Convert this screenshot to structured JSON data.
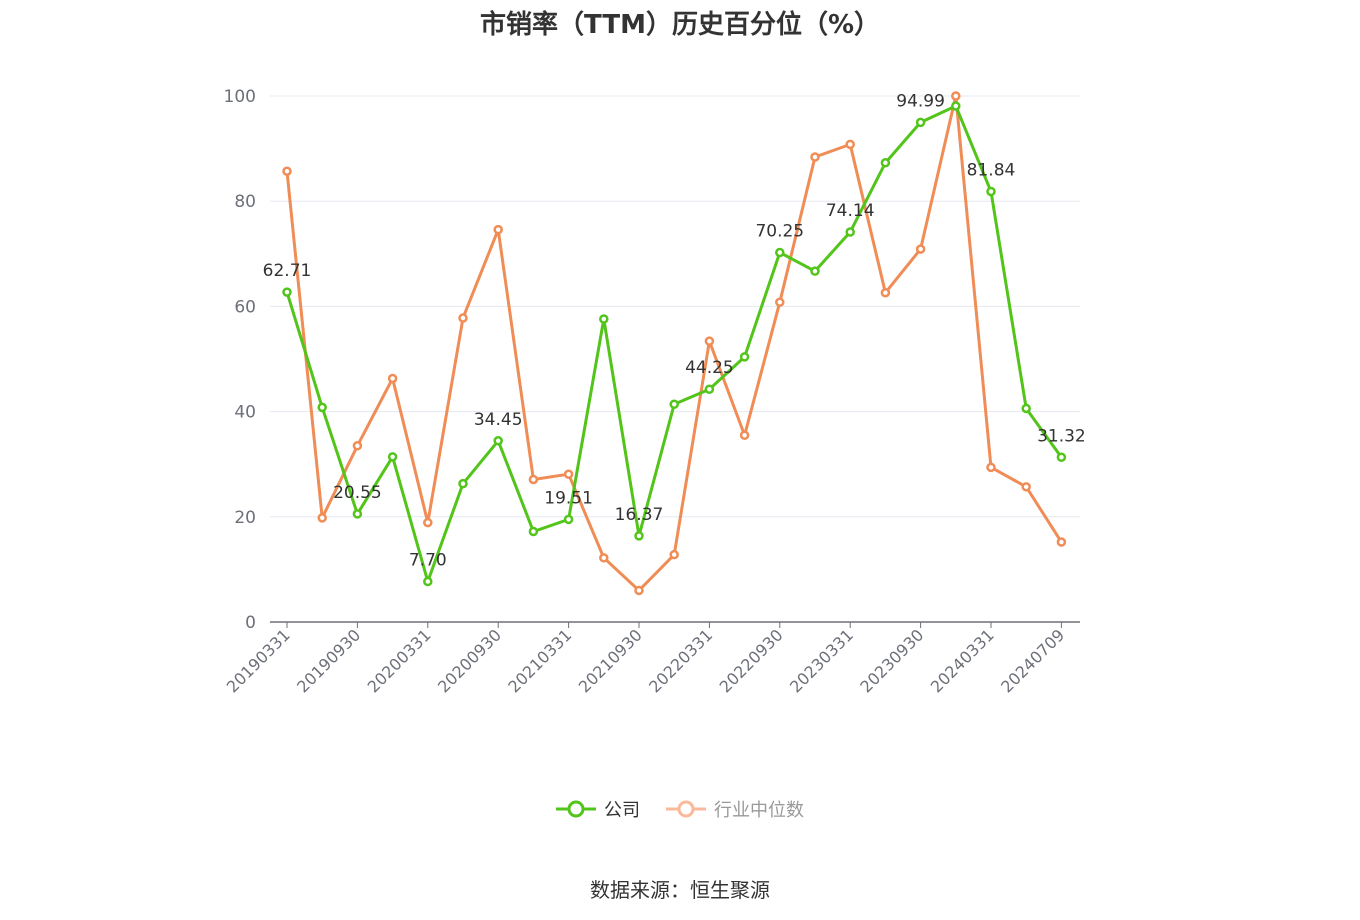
{
  "title": "市销率（TTM）历史百分位（%）",
  "source": "数据来源：恒生聚源",
  "colors": {
    "company": "#52c41a",
    "industry": "#f08c55",
    "grid": "#e6e8f0",
    "axis": "#6e7079",
    "label": "#333333"
  },
  "legend": [
    {
      "name": "公司",
      "color": "#52c41a",
      "icon": "circle-line-icon"
    },
    {
      "name": "行业中位数",
      "color": "#f9b99a",
      "icon": "circle-line-icon"
    }
  ],
  "chart_data": {
    "type": "line",
    "title": "市销率（TTM）历史百分位（%）",
    "xlabel": "",
    "ylabel": "",
    "ylim": [
      0,
      100
    ],
    "yticks": [
      0,
      20,
      40,
      60,
      80,
      100
    ],
    "grid": true,
    "legend_position": "bottom",
    "x": [
      "20190331",
      "20190630",
      "20190930",
      "20191231",
      "20200331",
      "20200630",
      "20200930",
      "20201231",
      "20210331",
      "20210630",
      "20210930",
      "20211231",
      "20220331",
      "20220630",
      "20220930",
      "20221231",
      "20230331",
      "20230630",
      "20230930",
      "20231231",
      "20240331",
      "20240630",
      "20240709"
    ],
    "x_tick_labels": [
      "20190331",
      "20190930",
      "20200331",
      "20200930",
      "20210331",
      "20210930",
      "20220331",
      "20220930",
      "20230331",
      "20230930",
      "20240331",
      "20240709"
    ],
    "series": [
      {
        "name": "公司",
        "values": [
          62.71,
          40.8,
          20.55,
          31.4,
          7.7,
          26.3,
          34.45,
          17.2,
          19.51,
          57.6,
          16.37,
          41.4,
          44.25,
          50.4,
          70.25,
          66.7,
          74.14,
          87.3,
          94.99,
          98.1,
          81.84,
          40.6,
          31.32
        ],
        "labels": [
          "62.71",
          "",
          "20.55",
          "",
          "7.70",
          "",
          "34.45",
          "",
          "19.51",
          "",
          "16.37",
          "",
          "44.25",
          "",
          "70.25",
          "",
          "74.14",
          "",
          "94.99",
          "",
          "81.84",
          "",
          "31.32"
        ]
      },
      {
        "name": "行业中位数",
        "values": [
          85.7,
          19.8,
          33.5,
          46.3,
          18.9,
          57.8,
          74.6,
          27.1,
          28.1,
          12.2,
          6.0,
          12.8,
          53.4,
          35.5,
          60.8,
          88.4,
          90.8,
          62.6,
          70.9,
          100.0,
          29.4,
          25.7,
          15.2
        ]
      }
    ]
  }
}
